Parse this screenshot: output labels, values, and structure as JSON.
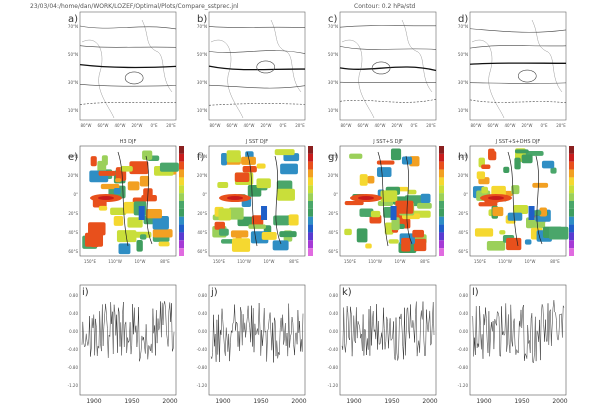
{
  "header": {
    "path": "23/03/04:/home/dan/WORK/LOZEF/Optimal/Plots/Compare_sstprec.jnl",
    "contour": "Contour: 0.2 hPa/std"
  },
  "row1": {
    "panel_labels": [
      "a)",
      "b)",
      "c)",
      "d)"
    ],
    "lat_labels": [
      "70°N",
      "50°N",
      "30°N",
      "10°N"
    ],
    "lon_labels": [
      "80°W",
      "60°W",
      "40°W",
      "20°W",
      "0°E",
      "20°E"
    ]
  },
  "row2": {
    "panel_labels": [
      "e)",
      "f)",
      "g)",
      "h)"
    ],
    "titles": [
      "H3 DJF",
      "J SST DJF",
      "J SST+S DJF",
      "J SST+S+DHS DJF"
    ],
    "lat_labels": [
      "40°N",
      "20°N",
      "0°",
      "20°S",
      "40°S",
      "60°S"
    ],
    "lon_labels": [
      "150°E",
      "110°W",
      "10°W",
      "80°E"
    ],
    "colors": [
      "#8a1f1f",
      "#c81c1c",
      "#e8501c",
      "#f2a022",
      "#f5d830",
      "#c9de3a",
      "#9bd05a",
      "#4aa66a",
      "#3f9d5f",
      "#2f8ec4",
      "#1f5fc8",
      "#5a3bd1",
      "#a63ad6",
      "#e06be0"
    ]
  },
  "row3": {
    "panel_labels": [
      "i)",
      "j)",
      "k)",
      "l)"
    ],
    "y_ticks": [
      "0.80",
      "0.40",
      "0.00",
      "-0.40",
      "-0.80",
      "-1.20"
    ],
    "x_ticks": [
      "1900",
      "1950",
      "2000"
    ]
  }
}
